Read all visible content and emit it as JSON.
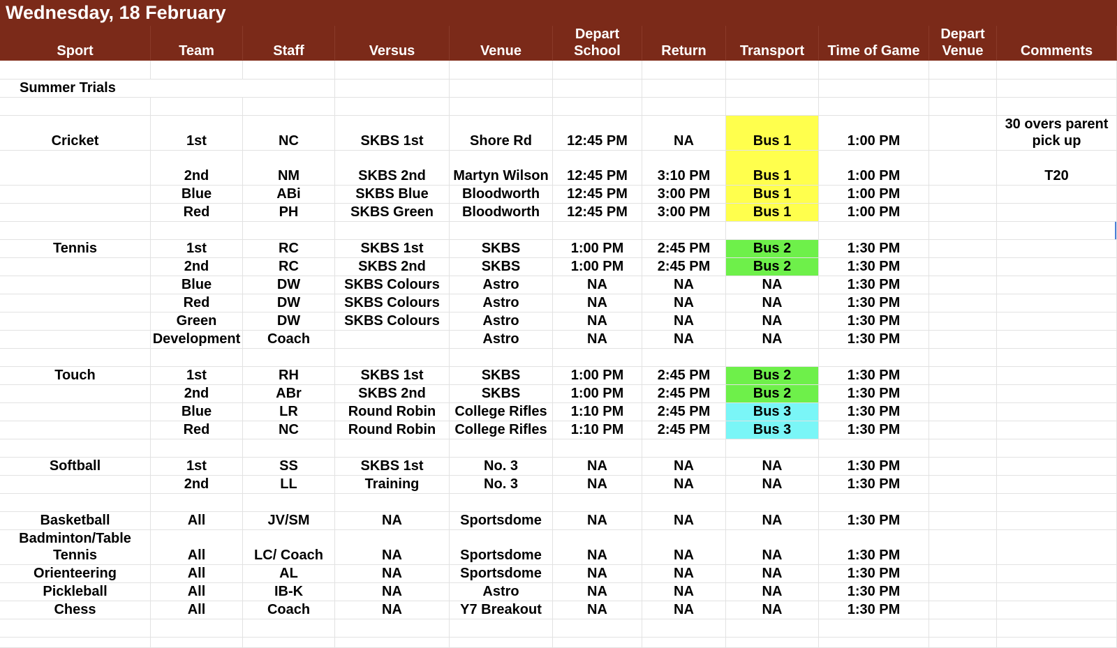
{
  "title": "Wednesday, 18 February",
  "headers": [
    "Sport",
    "Team",
    "Staff",
    "Versus",
    "Venue",
    "Depart School",
    "Return",
    "Transport",
    "Time of Game",
    "Depart Venue",
    "Comments"
  ],
  "section_label": "Summer Trials",
  "colors": {
    "header_bg": "#7b2a19",
    "bus1": "#ffff4d",
    "bus2": "#6ef04a",
    "bus3": "#7af6f7"
  },
  "rows": [
    {
      "sport": "Cricket",
      "team": "1st",
      "staff": "NC",
      "versus": "SKBS 1st",
      "venue": "Shore Rd",
      "depart": "12:45 PM",
      "return": "NA",
      "transport": "Bus 1",
      "time": "1:00 PM",
      "depart_venue": "",
      "comments": "30 overs parent pick up"
    },
    {
      "sport": "",
      "team": "2nd",
      "staff": "NM",
      "versus": "SKBS 2nd",
      "venue": "Martyn Wilson",
      "depart": "12:45 PM",
      "return": "3:10 PM",
      "transport": "Bus 1",
      "time": "1:00 PM",
      "depart_venue": "",
      "comments": "T20"
    },
    {
      "sport": "",
      "team": "Blue",
      "staff": "ABi",
      "versus": "SKBS Blue",
      "venue": "Bloodworth",
      "depart": "12:45 PM",
      "return": "3:00 PM",
      "transport": "Bus 1",
      "time": "1:00 PM",
      "depart_venue": "",
      "comments": ""
    },
    {
      "sport": "",
      "team": "Red",
      "staff": "PH",
      "versus": "SKBS Green",
      "venue": "Bloodworth",
      "depart": "12:45 PM",
      "return": "3:00 PM",
      "transport": "Bus 1",
      "time": "1:00 PM",
      "depart_venue": "",
      "comments": ""
    },
    {
      "sport": "Tennis",
      "team": "1st",
      "staff": "RC",
      "versus": "SKBS 1st",
      "venue": "SKBS",
      "depart": "1:00 PM",
      "return": "2:45 PM",
      "transport": "Bus 2",
      "time": "1:30 PM",
      "depart_venue": "",
      "comments": ""
    },
    {
      "sport": "",
      "team": "2nd",
      "staff": "RC",
      "versus": "SKBS 2nd",
      "venue": "SKBS",
      "depart": "1:00 PM",
      "return": "2:45 PM",
      "transport": "Bus 2",
      "time": "1:30 PM",
      "depart_venue": "",
      "comments": ""
    },
    {
      "sport": "",
      "team": "Blue",
      "staff": "DW",
      "versus": "SKBS Colours",
      "venue": "Astro",
      "depart": "NA",
      "return": "NA",
      "transport": "NA",
      "time": "1:30 PM",
      "depart_venue": "",
      "comments": ""
    },
    {
      "sport": "",
      "team": "Red",
      "staff": "DW",
      "versus": "SKBS Colours",
      "venue": "Astro",
      "depart": "NA",
      "return": "NA",
      "transport": "NA",
      "time": "1:30 PM",
      "depart_venue": "",
      "comments": ""
    },
    {
      "sport": "",
      "team": "Green",
      "staff": "DW",
      "versus": "SKBS Colours",
      "venue": "Astro",
      "depart": "NA",
      "return": "NA",
      "transport": "NA",
      "time": "1:30 PM",
      "depart_venue": "",
      "comments": ""
    },
    {
      "sport": "",
      "team": "Development",
      "staff": "Coach",
      "versus": "",
      "venue": "Astro",
      "depart": "NA",
      "return": "NA",
      "transport": "NA",
      "time": "1:30 PM",
      "depart_venue": "",
      "comments": ""
    },
    {
      "sport": "Touch",
      "team": "1st",
      "staff": "RH",
      "versus": "SKBS 1st",
      "venue": "SKBS",
      "depart": "1:00 PM",
      "return": "2:45 PM",
      "transport": "Bus 2",
      "time": "1:30 PM",
      "depart_venue": "",
      "comments": ""
    },
    {
      "sport": "",
      "team": "2nd",
      "staff": "ABr",
      "versus": "SKBS 2nd",
      "venue": "SKBS",
      "depart": "1:00 PM",
      "return": "2:45 PM",
      "transport": "Bus 2",
      "time": "1:30 PM",
      "depart_venue": "",
      "comments": ""
    },
    {
      "sport": "",
      "team": "Blue",
      "staff": "LR",
      "versus": "Round Robin",
      "venue": "College Rifles",
      "depart": "1:10 PM",
      "return": "2:45 PM",
      "transport": "Bus 3",
      "time": "1:30 PM",
      "depart_venue": "",
      "comments": ""
    },
    {
      "sport": "",
      "team": "Red",
      "staff": "NC",
      "versus": "Round Robin",
      "venue": "College Rifles",
      "depart": "1:10 PM",
      "return": "2:45 PM",
      "transport": "Bus 3",
      "time": "1:30 PM",
      "depart_venue": "",
      "comments": ""
    },
    {
      "sport": "Softball",
      "team": "1st",
      "staff": "SS",
      "versus": "SKBS 1st",
      "venue": "No. 3",
      "depart": "NA",
      "return": "NA",
      "transport": "NA",
      "time": "1:30 PM",
      "depart_venue": "",
      "comments": ""
    },
    {
      "sport": "",
      "team": "2nd",
      "staff": "LL",
      "versus": "Training",
      "venue": "No. 3",
      "depart": "NA",
      "return": "NA",
      "transport": "NA",
      "time": "1:30 PM",
      "depart_venue": "",
      "comments": ""
    },
    {
      "sport": "Basketball",
      "team": "All",
      "staff": "JV/SM",
      "versus": "NA",
      "venue": "Sportsdome",
      "depart": "NA",
      "return": "NA",
      "transport": "NA",
      "time": "1:30 PM",
      "depart_venue": "",
      "comments": ""
    },
    {
      "sport": "Badminton/Table Tennis",
      "team": "All",
      "staff": "LC/ Coach",
      "versus": "NA",
      "venue": "Sportsdome",
      "depart": "NA",
      "return": "NA",
      "transport": "NA",
      "time": "1:30 PM",
      "depart_venue": "",
      "comments": ""
    },
    {
      "sport": "Orienteering",
      "team": "All",
      "staff": "AL",
      "versus": "NA",
      "venue": "Sportsdome",
      "depart": "NA",
      "return": "NA",
      "transport": "NA",
      "time": "1:30 PM",
      "depart_venue": "",
      "comments": ""
    },
    {
      "sport": "Pickleball",
      "team": "All",
      "staff": "IB-K",
      "versus": "NA",
      "venue": "Astro",
      "depart": "NA",
      "return": "NA",
      "transport": "NA",
      "time": "1:30 PM",
      "depart_venue": "",
      "comments": ""
    },
    {
      "sport": "Chess",
      "team": "All",
      "staff": "Coach",
      "versus": "NA",
      "venue": "Y7 Breakout",
      "depart": "NA",
      "return": "NA",
      "transport": "NA",
      "time": "1:30 PM",
      "depart_venue": "",
      "comments": ""
    }
  ]
}
